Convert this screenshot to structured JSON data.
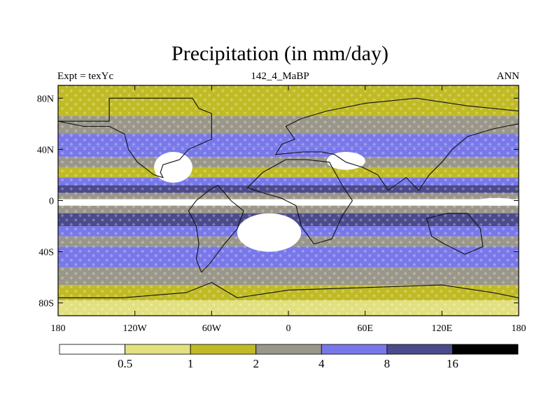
{
  "title": "Precipitation (in mm/day)",
  "left_string": "Expt = texYc",
  "center_string": "142_4_MaBP",
  "right_string": "ANN",
  "chart_data": {
    "type": "heatmap",
    "title": "Precipitation (in mm/day)",
    "x_tick_labels": [
      "180",
      "120W",
      "60W",
      "0",
      "60E",
      "120E",
      "180"
    ],
    "x_tick_values": [
      -180,
      -120,
      -60,
      0,
      60,
      120,
      180
    ],
    "y_tick_labels": [
      "80N",
      "40N",
      "0",
      "40S",
      "80S"
    ],
    "y_tick_values": [
      80,
      40,
      0,
      -40,
      -80
    ],
    "xlim": [
      -180,
      180
    ],
    "ylim": [
      -90,
      90
    ],
    "colorbar": {
      "boundaries": [
        "0.5",
        "1",
        "2",
        "4",
        "8",
        "16"
      ],
      "colors": [
        "#ffffff",
        "#e2e07f",
        "#c0bb24",
        "#9a978a",
        "#7978ea",
        "#4a4a8c",
        "#000000"
      ]
    },
    "zonal_bands": [
      {
        "lat": [
          78,
          90
        ],
        "mm_per_day": 1.5
      },
      {
        "lat": [
          66,
          78
        ],
        "mm_per_day": 1.5
      },
      {
        "lat": [
          52,
          66
        ],
        "mm_per_day": 3
      },
      {
        "lat": [
          42,
          52
        ],
        "mm_per_day": 5
      },
      {
        "lat": [
          34,
          42
        ],
        "mm_per_day": 5
      },
      {
        "lat": [
          26,
          34
        ],
        "mm_per_day": 3
      },
      {
        "lat": [
          18,
          26
        ],
        "mm_per_day": 1.5
      },
      {
        "lat": [
          12,
          18
        ],
        "mm_per_day": 4
      },
      {
        "lat": [
          6,
          12
        ],
        "mm_per_day": 10
      },
      {
        "lat": [
          1,
          6
        ],
        "mm_per_day": 3
      },
      {
        "lat": [
          -4,
          1
        ],
        "mm_per_day": 0.4
      },
      {
        "lat": [
          -10,
          -4
        ],
        "mm_per_day": 3
      },
      {
        "lat": [
          -20,
          -10
        ],
        "mm_per_day": 10
      },
      {
        "lat": [
          -28,
          -20
        ],
        "mm_per_day": 5
      },
      {
        "lat": [
          -36,
          -28
        ],
        "mm_per_day": 3
      },
      {
        "lat": [
          -52,
          -36
        ],
        "mm_per_day": 5
      },
      {
        "lat": [
          -66,
          -52
        ],
        "mm_per_day": 3
      },
      {
        "lat": [
          -78,
          -66
        ],
        "mm_per_day": 1.5
      },
      {
        "lat": [
          -84,
          -78
        ],
        "mm_per_day": 0.8
      },
      {
        "lat": [
          -90,
          -84
        ],
        "mm_per_day": 0.8
      }
    ],
    "dry_regions_lon_lat": [
      {
        "lon": [
          -105,
          -75
        ],
        "lat": [
          14,
          38
        ]
      },
      {
        "lon": [
          -40,
          10
        ],
        "lat": [
          -40,
          -10
        ]
      },
      {
        "lon": [
          30,
          60
        ],
        "lat": [
          24,
          38
        ]
      },
      {
        "lon": [
          145,
          180
        ],
        "lat": [
          -4,
          2
        ]
      },
      {
        "lon": [
          -180,
          -130
        ],
        "lat": [
          -4,
          1
        ]
      }
    ],
    "continent_outlines_lon_lat": [
      [
        [
          -180,
          62
        ],
        [
          -140,
          62
        ],
        [
          -140,
          80
        ],
        [
          -75,
          80
        ],
        [
          -70,
          72
        ],
        [
          -60,
          68
        ],
        [
          -60,
          48
        ],
        [
          -78,
          40
        ],
        [
          -85,
          32
        ],
        [
          -98,
          28
        ],
        [
          -100,
          22
        ],
        [
          -98,
          18
        ],
        [
          -105,
          20
        ],
        [
          -118,
          30
        ],
        [
          -125,
          40
        ],
        [
          -128,
          52
        ],
        [
          -140,
          58
        ],
        [
          -160,
          58
        ],
        [
          -180,
          62
        ]
      ],
      [
        [
          -55,
          12
        ],
        [
          -62,
          8
        ],
        [
          -72,
          0
        ],
        [
          -78,
          -8
        ],
        [
          -72,
          -20
        ],
        [
          -70,
          -34
        ],
        [
          -72,
          -46
        ],
        [
          -68,
          -56
        ],
        [
          -62,
          -50
        ],
        [
          -50,
          -34
        ],
        [
          -40,
          -22
        ],
        [
          -35,
          -8
        ],
        [
          -45,
          0
        ],
        [
          -55,
          12
        ]
      ],
      [
        [
          -32,
          10
        ],
        [
          -20,
          22
        ],
        [
          -2,
          32
        ],
        [
          14,
          32
        ],
        [
          32,
          30
        ],
        [
          42,
          12
        ],
        [
          50,
          0
        ],
        [
          42,
          -12
        ],
        [
          34,
          -30
        ],
        [
          20,
          -34
        ],
        [
          10,
          -20
        ],
        [
          6,
          -4
        ],
        [
          -6,
          2
        ],
        [
          -20,
          6
        ],
        [
          -32,
          10
        ]
      ],
      [
        [
          -10,
          36
        ],
        [
          -5,
          44
        ],
        [
          5,
          48
        ],
        [
          -2,
          58
        ],
        [
          10,
          64
        ],
        [
          30,
          70
        ],
        [
          60,
          76
        ],
        [
          100,
          80
        ],
        [
          140,
          74
        ],
        [
          180,
          70
        ],
        [
          180,
          60
        ],
        [
          160,
          56
        ],
        [
          140,
          50
        ],
        [
          128,
          40
        ],
        [
          120,
          30
        ],
        [
          110,
          20
        ],
        [
          102,
          8
        ],
        [
          92,
          18
        ],
        [
          78,
          8
        ],
        [
          70,
          20
        ],
        [
          58,
          26
        ],
        [
          45,
          30
        ],
        [
          36,
          36
        ],
        [
          26,
          38
        ],
        [
          12,
          38
        ],
        [
          -10,
          36
        ]
      ],
      [
        [
          108,
          -14
        ],
        [
          124,
          -10
        ],
        [
          140,
          -10
        ],
        [
          150,
          -22
        ],
        [
          152,
          -36
        ],
        [
          138,
          -42
        ],
        [
          122,
          -34
        ],
        [
          112,
          -28
        ],
        [
          108,
          -14
        ]
      ],
      [
        [
          -180,
          -76
        ],
        [
          -130,
          -76
        ],
        [
          -80,
          -72
        ],
        [
          -60,
          -64
        ],
        [
          -40,
          -76
        ],
        [
          0,
          -70
        ],
        [
          60,
          -68
        ],
        [
          120,
          -66
        ],
        [
          160,
          -72
        ],
        [
          180,
          -76
        ],
        [
          180,
          -90
        ],
        [
          -180,
          -90
        ],
        [
          -180,
          -76
        ]
      ]
    ]
  }
}
